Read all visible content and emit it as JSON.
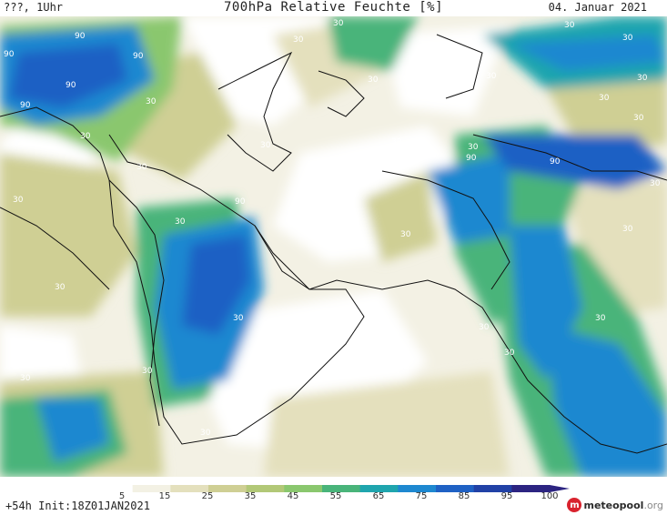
{
  "header": {
    "left": "???, 1Uhr",
    "title": "700hPa Relative Feuchte [%]",
    "date": "04. Januar 2021"
  },
  "footer": {
    "left": "+54h Init:18Z01JAN2021",
    "logo_brand": "meteopool",
    "logo_tld": ".org"
  },
  "colorbar": {
    "ticks": [
      "5",
      "15",
      "25",
      "35",
      "45",
      "55",
      "65",
      "75",
      "85",
      "95",
      "100"
    ],
    "colors": [
      "#ffffff",
      "#f3f1e4",
      "#e4e0bd",
      "#cfcf94",
      "#b2c877",
      "#8ac76e",
      "#49b47a",
      "#1fa5ae",
      "#1e88d0",
      "#1f61c4",
      "#2141a6",
      "#2c2481"
    ]
  },
  "map": {
    "contour_labels": [
      "90",
      "90",
      "90",
      "90",
      "90",
      "30",
      "30",
      "30",
      "30",
      "30",
      "30",
      "30",
      "30",
      "30",
      "30",
      "30",
      "30",
      "30",
      "30",
      "30",
      "30",
      "30",
      "90",
      "90",
      "90",
      "30",
      "30",
      "30",
      "30",
      "30",
      "30",
      "30",
      "30",
      "30",
      "30",
      "30",
      "30"
    ]
  }
}
